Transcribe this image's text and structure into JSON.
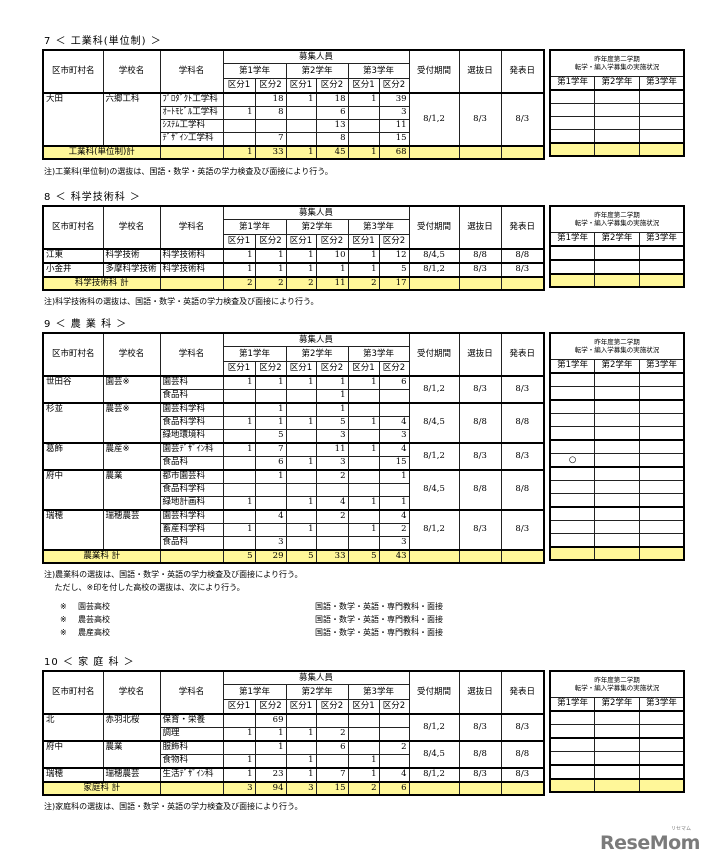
{
  "headers": {
    "city": "区市町村名",
    "school": "学校名",
    "dept": "学科名",
    "recruitment": "募集人員",
    "grades": [
      "第1学年",
      "第2学年",
      "第3学年"
    ],
    "divisions": [
      "区分1",
      "区分2"
    ],
    "period": "受付期間",
    "selection": "選抜日",
    "announcement": "発表日",
    "last_year_title_1": "昨年度第二学期",
    "last_year_title_2": "転学・編入学募集の実施状況"
  },
  "sections": [
    {
      "title": "7 ＜ 工業科(単位制) ＞",
      "groups": [
        {
          "city": "大田",
          "school": "六郷工科",
          "period": "8/1,2",
          "selection": "8/3",
          "announcement": "8/3",
          "depts": [
            {
              "name": "ﾌﾟﾛﾀﾞｸﾄ工学科",
              "values": [
                "",
                "18",
                "1",
                "18",
                "1",
                "39"
              ]
            },
            {
              "name": "ｵｰﾄﾓﾋﾞﾙ工学科",
              "values": [
                "1",
                "8",
                "",
                "6",
                "",
                "3"
              ]
            },
            {
              "name": "ｼｽﾃﾑ工学科",
              "values": [
                "",
                "",
                "",
                "13",
                "",
                "11"
              ]
            },
            {
              "name": "ﾃﾞｻﾞｲﾝ工学科",
              "values": [
                "",
                "7",
                "",
                "8",
                "",
                "15"
              ]
            }
          ]
        }
      ],
      "total": {
        "label": "工業科(単位制)計",
        "values": [
          "1",
          "33",
          "1",
          "45",
          "1",
          "68"
        ]
      },
      "notes": [
        "注)工業科(単位制)の選抜は、国語・数学・英語の学力検査及び面接により行う。"
      ]
    },
    {
      "title": "8 ＜ 科学技術科 ＞",
      "groups": [
        {
          "city": "江東",
          "school": "科学技術",
          "period": "8/4,5",
          "selection": "8/8",
          "announcement": "8/8",
          "depts": [
            {
              "name": "科学技術科",
              "values": [
                "1",
                "1",
                "1",
                "10",
                "1",
                "12"
              ]
            }
          ]
        },
        {
          "city": "小金井",
          "school": "多摩科学技術",
          "period": "8/1,2",
          "selection": "8/3",
          "announcement": "8/3",
          "depts": [
            {
              "name": "科学技術科",
              "values": [
                "1",
                "1",
                "1",
                "1",
                "1",
                "5"
              ]
            }
          ]
        }
      ],
      "total": {
        "label": "科学技術科 計",
        "values": [
          "2",
          "2",
          "2",
          "11",
          "2",
          "17"
        ]
      },
      "notes": [
        "注)科学技術科の選抜は、国語・数学・英語の学力検査及び面接により行う。"
      ]
    },
    {
      "title": "9 ＜ 農 業 科 ＞",
      "groups": [
        {
          "city": "世田谷",
          "school": "園芸※",
          "period": "8/1,2",
          "selection": "8/3",
          "announcement": "8/3",
          "depts": [
            {
              "name": "園芸科",
              "values": [
                "1",
                "1",
                "1",
                "1",
                "1",
                "6"
              ]
            },
            {
              "name": "食品科",
              "values": [
                "",
                "",
                "",
                "1",
                "",
                ""
              ]
            }
          ]
        },
        {
          "city": "杉並",
          "school": "農芸※",
          "period": "8/4,5",
          "selection": "8/8",
          "announcement": "8/8",
          "depts": [
            {
              "name": "園芸科学科",
              "values": [
                "",
                "1",
                "",
                "1",
                "",
                ""
              ]
            },
            {
              "name": "食品科学科",
              "values": [
                "1",
                "1",
                "1",
                "5",
                "1",
                "4"
              ]
            },
            {
              "name": "緑地環境科",
              "values": [
                "",
                "5",
                "",
                "3",
                "",
                "3"
              ]
            }
          ]
        },
        {
          "city": "葛飾",
          "school": "農産※",
          "period": "8/1,2",
          "selection": "8/3",
          "announcement": "8/3",
          "depts": [
            {
              "name": "園芸ﾃﾞｻﾞｲﾝ科",
              "values": [
                "1",
                "7",
                "",
                "11",
                "1",
                "4"
              ]
            },
            {
              "name": "食品科",
              "values": [
                "",
                "6",
                "1",
                "3",
                "",
                "15"
              ],
              "last_year": [
                "○",
                "",
                ""
              ]
            }
          ]
        },
        {
          "city": "府中",
          "school": "農業",
          "period": "8/4,5",
          "selection": "8/8",
          "announcement": "8/8",
          "depts": [
            {
              "name": "都市園芸科",
              "values": [
                "",
                "1",
                "",
                "2",
                "",
                "1"
              ]
            },
            {
              "name": "食品科学科",
              "values": [
                "",
                "",
                "",
                "",
                "",
                ""
              ]
            },
            {
              "name": "緑地計画科",
              "values": [
                "1",
                "",
                "1",
                "4",
                "1",
                "1"
              ]
            }
          ]
        },
        {
          "city": "瑞穂",
          "school": "瑞穂農芸",
          "period": "8/1,2",
          "selection": "8/3",
          "announcement": "8/3",
          "depts": [
            {
              "name": "園芸科学科",
              "values": [
                "",
                "4",
                "",
                "2",
                "",
                "4"
              ]
            },
            {
              "name": "畜産科学科",
              "values": [
                "1",
                "",
                "1",
                "",
                "1",
                "2"
              ]
            },
            {
              "name": "食品科",
              "values": [
                "",
                "3",
                "",
                "",
                "",
                "3"
              ]
            }
          ]
        }
      ],
      "total": {
        "label": "農業科 計",
        "values": [
          "5",
          "29",
          "5",
          "33",
          "5",
          "43"
        ]
      },
      "notes": [
        "注)農業科の選抜は、国語・数学・英語の学力検査及び面接により行う。",
        "　 ただし、※印を付した高校の選抜は、次により行う。"
      ],
      "special": [
        {
          "mark": "※",
          "school": "園芸高校",
          "subjects": "国語・数学・英語・専門教科・面接"
        },
        {
          "mark": "※",
          "school": "農芸高校",
          "subjects": "国語・数学・英語・専門教科・面接"
        },
        {
          "mark": "※",
          "school": "農産高校",
          "subjects": "国語・数学・英語・専門教科・面接"
        }
      ]
    },
    {
      "title": "10 ＜ 家 庭 科 ＞",
      "groups": [
        {
          "city": "北",
          "school": "赤羽北桜",
          "period": "8/1,2",
          "selection": "8/3",
          "announcement": "8/3",
          "depts": [
            {
              "name": "保育・栄養",
              "values": [
                "",
                "69",
                "",
                "",
                "",
                ""
              ]
            },
            {
              "name": "調理",
              "values": [
                "1",
                "1",
                "1",
                "2",
                "",
                ""
              ]
            }
          ]
        },
        {
          "city": "府中",
          "school": "農業",
          "period": "8/4,5",
          "selection": "8/8",
          "announcement": "8/8",
          "depts": [
            {
              "name": "服飾科",
              "values": [
                "",
                "1",
                "",
                "6",
                "",
                "2"
              ]
            },
            {
              "name": "食物科",
              "values": [
                "1",
                "",
                "1",
                "",
                "1",
                ""
              ]
            }
          ]
        },
        {
          "city": "瑞穂",
          "school": "瑞穂農芸",
          "period": "8/1,2",
          "selection": "8/3",
          "announcement": "8/3",
          "depts": [
            {
              "name": "生活ﾃﾞｻﾞｲﾝ科",
              "values": [
                "1",
                "23",
                "1",
                "7",
                "1",
                "4"
              ]
            }
          ]
        }
      ],
      "total": {
        "label": "家庭科 計",
        "values": [
          "3",
          "94",
          "3",
          "15",
          "2",
          "6"
        ]
      },
      "notes": [
        "注)家庭科の選抜は、国語・数学・英語の学力検査及び面接により行う。"
      ]
    }
  ],
  "logo": "ReseMom",
  "logo_sub": "リセマム",
  "colors": {
    "total_row": "#fff799",
    "logo": "#7b7b7b"
  }
}
